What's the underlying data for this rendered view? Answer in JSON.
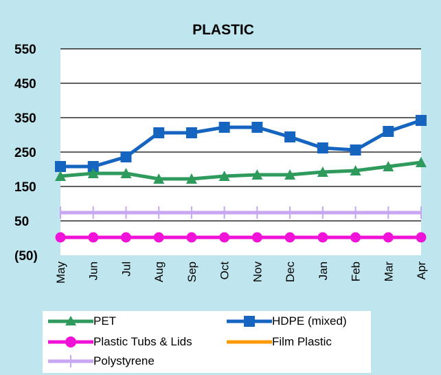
{
  "chart_data": {
    "type": "line",
    "title": "PLASTIC",
    "xlabel": "",
    "ylabel": "",
    "categories": [
      "May",
      "Jun",
      "Jul",
      "Aug",
      "Sep",
      "Oct",
      "Nov",
      "Dec",
      "Jan",
      "Feb",
      "Mar",
      "Apr"
    ],
    "y_ticks": [
      "550",
      "450",
      "350",
      "250",
      "150",
      "50",
      "(50)"
    ],
    "ylim": [
      -50,
      550
    ],
    "grid": "horizontal",
    "legend_position": "bottom",
    "series": [
      {
        "name": "PET",
        "color": "#2e9a5c",
        "marker": "triangle",
        "values": [
          180,
          188,
          188,
          172,
          172,
          180,
          184,
          184,
          192,
          196,
          208,
          220
        ]
      },
      {
        "name": "HDPE (mixed)",
        "color": "#1565c0",
        "marker": "square",
        "values": [
          208,
          208,
          236,
          306,
          306,
          322,
          322,
          294,
          262,
          256,
          310,
          342
        ]
      },
      {
        "name": "Plastic Tubs & Lids",
        "color": "#f012d6",
        "marker": "circle",
        "values": [
          2,
          2,
          2,
          2,
          2,
          2,
          2,
          2,
          2,
          2,
          2,
          2
        ]
      },
      {
        "name": "Film Plastic",
        "color": "#ff9900",
        "marker": "none",
        "values": [
          2,
          2,
          2,
          2,
          2,
          2,
          2,
          2,
          2,
          2,
          2,
          2
        ]
      },
      {
        "name": "Polystyrene",
        "color": "#c7a6f2",
        "marker": "plus",
        "values": [
          74,
          74,
          74,
          74,
          74,
          74,
          74,
          74,
          74,
          74,
          74,
          74
        ]
      }
    ]
  }
}
